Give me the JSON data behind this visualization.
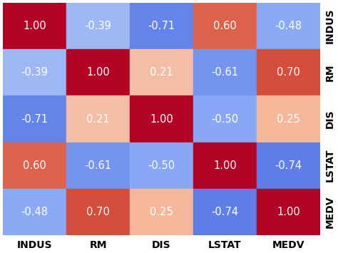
{
  "labels": [
    "INDUS",
    "RM",
    "DIS",
    "LSTAT",
    "MEDV"
  ],
  "matrix": [
    [
      1.0,
      -0.39,
      -0.71,
      0.6,
      -0.48
    ],
    [
      -0.39,
      1.0,
      0.21,
      -0.61,
      0.7
    ],
    [
      -0.71,
      0.21,
      1.0,
      -0.5,
      0.25
    ],
    [
      0.6,
      -0.61,
      -0.5,
      1.0,
      -0.74
    ],
    [
      -0.48,
      0.7,
      0.25,
      -0.74,
      1.0
    ]
  ],
  "background_color": "#ffffff",
  "text_color_light": "#ffffff",
  "text_color_dark": "#555555",
  "font_size_annot": 10.5,
  "font_size_labels": 10,
  "figsize": [
    4.74,
    3.55
  ],
  "dpi": 100,
  "vmin": -1,
  "vmax": 1,
  "cmap_colors": [
    [
      0.0,
      "#3b4cc0"
    ],
    [
      0.125,
      "#5e7de8"
    ],
    [
      0.25,
      "#88a7f5"
    ],
    [
      0.375,
      "#b9cef8"
    ],
    [
      0.5,
      "#edddd4"
    ],
    [
      0.625,
      "#f5b89a"
    ],
    [
      0.75,
      "#e8755a"
    ],
    [
      0.875,
      "#d04535"
    ],
    [
      1.0,
      "#b40426"
    ]
  ]
}
